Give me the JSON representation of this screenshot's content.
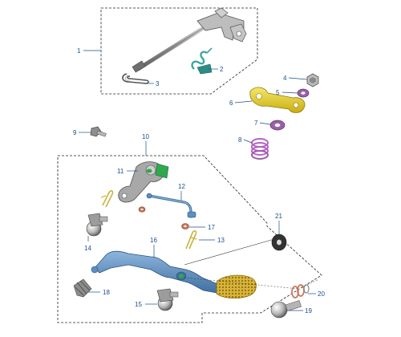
{
  "parts": [
    {
      "number": "1",
      "name": "shift-shaft-assembly"
    },
    {
      "number": "2",
      "name": "return-spring"
    },
    {
      "number": "3",
      "name": "snap-ring"
    },
    {
      "number": "4",
      "name": "nut"
    },
    {
      "number": "5",
      "name": "washer"
    },
    {
      "number": "6",
      "name": "shift-arm"
    },
    {
      "number": "7",
      "name": "washer"
    },
    {
      "number": "8",
      "name": "spring"
    },
    {
      "number": "9",
      "name": "bolt"
    },
    {
      "number": "10",
      "name": "shift-pedal-assembly-group"
    },
    {
      "number": "11",
      "name": "shift-lever-arm"
    },
    {
      "number": "12",
      "name": "shift-rod"
    },
    {
      "number": "13",
      "name": "cotter-pin"
    },
    {
      "number": "14",
      "name": "rod-end-joint"
    },
    {
      "number": "15",
      "name": "rod-end-joint"
    },
    {
      "number": "16",
      "name": "shift-pedal"
    },
    {
      "number": "17",
      "name": "washer"
    },
    {
      "number": "18",
      "name": "rubber-peg-cover"
    },
    {
      "number": "19",
      "name": "pivot-bolt"
    },
    {
      "number": "20",
      "name": "washer-set"
    },
    {
      "number": "21",
      "name": "seal-washer"
    }
  ],
  "colors": {
    "callout": "#1a4f8a",
    "frame": "#222222",
    "shaft": "#9a9a9a",
    "arm_yellow": "#e8d21e",
    "washer_purple": "#9b5fa8",
    "spring_teal": "#3aa7a0",
    "pedal_blue": "#5b8ec4",
    "rubber_gold": "#d9b53a",
    "accent_green": "#2fa84f",
    "washer_copper": "#c87a5a",
    "dark_washer": "#333333"
  }
}
